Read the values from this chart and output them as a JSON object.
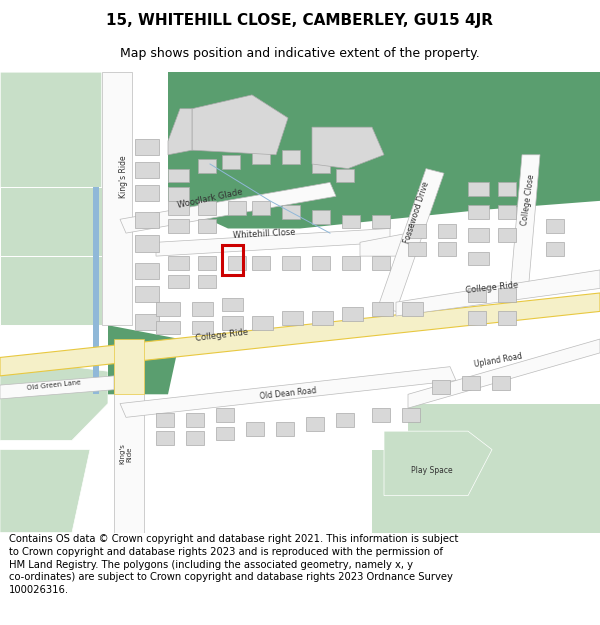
{
  "title_line1": "15, WHITEHILL CLOSE, CAMBERLEY, GU15 4JR",
  "title_line2": "Map shows position and indicative extent of the property.",
  "footer_text": "Contains OS data © Crown copyright and database right 2021. This information is subject to Crown copyright and database rights 2023 and is reproduced with the permission of HM Land Registry. The polygons (including the associated geometry, namely x, y co-ordinates) are subject to Crown copyright and database rights 2023 Ordnance Survey 100026316.",
  "bg_color": "#ffffff",
  "map_bg": "#f0f0f0",
  "building_color": "#d8d8d8",
  "building_stroke": "#aaaaaa",
  "green_light": "#c8dfc8",
  "green_dark": "#5a9e6f",
  "highlight_color": "#cc0000",
  "road_yellow_fill": "#f5f0c8",
  "road_yellow_edge": "#e8c840",
  "road_white": "#fafafa",
  "road_edge": "#bbbbbb",
  "blue_line": "#90b8d8",
  "title_fontsize": 11,
  "subtitle_fontsize": 9,
  "footer_fontsize": 7.2
}
